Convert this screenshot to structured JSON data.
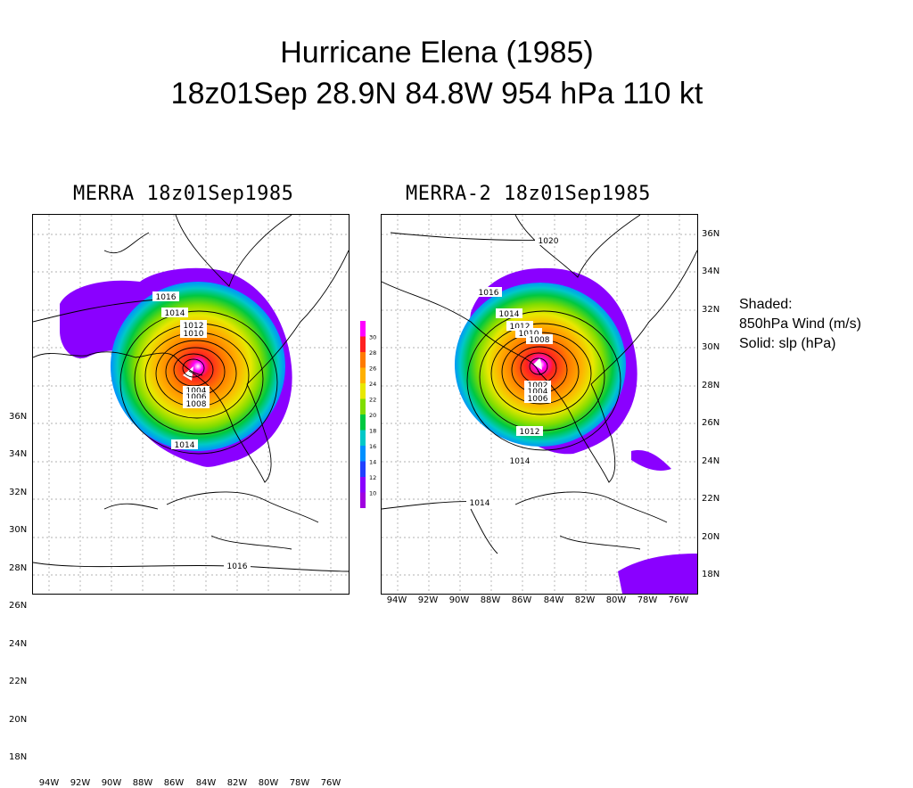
{
  "title": {
    "line1": "Hurricane Elena (1985)",
    "line2": "18z01Sep 28.9N 84.8W 954 hPa 110 kt"
  },
  "panels": [
    {
      "title": "MERRA 18z01Sep1985",
      "contour_labels": [
        "1016",
        "1014",
        "1012",
        "1010",
        "1004",
        "1006",
        "1008",
        "1014",
        "1016"
      ]
    },
    {
      "title": "MERRA-2 18z01Sep1985",
      "contour_labels": [
        "1020",
        "1016",
        "1014",
        "1012",
        "1010",
        "1008",
        "1002",
        "1004",
        "1006",
        "1012",
        "1014",
        "1014"
      ]
    }
  ],
  "axes": {
    "lat_labels": [
      "36N",
      "34N",
      "32N",
      "30N",
      "28N",
      "26N",
      "24N",
      "22N",
      "20N",
      "18N"
    ],
    "lon_labels": [
      "94W",
      "92W",
      "90W",
      "88W",
      "86W",
      "84W",
      "82W",
      "80W",
      "78W",
      "76W"
    ]
  },
  "colorbar": {
    "labels": [
      "30",
      "28",
      "26",
      "24",
      "22",
      "20",
      "18",
      "16",
      "14",
      "12",
      "10"
    ],
    "colors": [
      "#ff00ff",
      "#ff2020",
      "#ff7a00",
      "#ffb000",
      "#e8e800",
      "#80dd00",
      "#00c840",
      "#00c8c8",
      "#0090ff",
      "#2040ff",
      "#8a00ff",
      "#a000e0"
    ]
  },
  "legend": {
    "line1": "Shaded:",
    "line2": "850hPa Wind (m/s)",
    "line3": "Solid: slp (hPa)"
  }
}
